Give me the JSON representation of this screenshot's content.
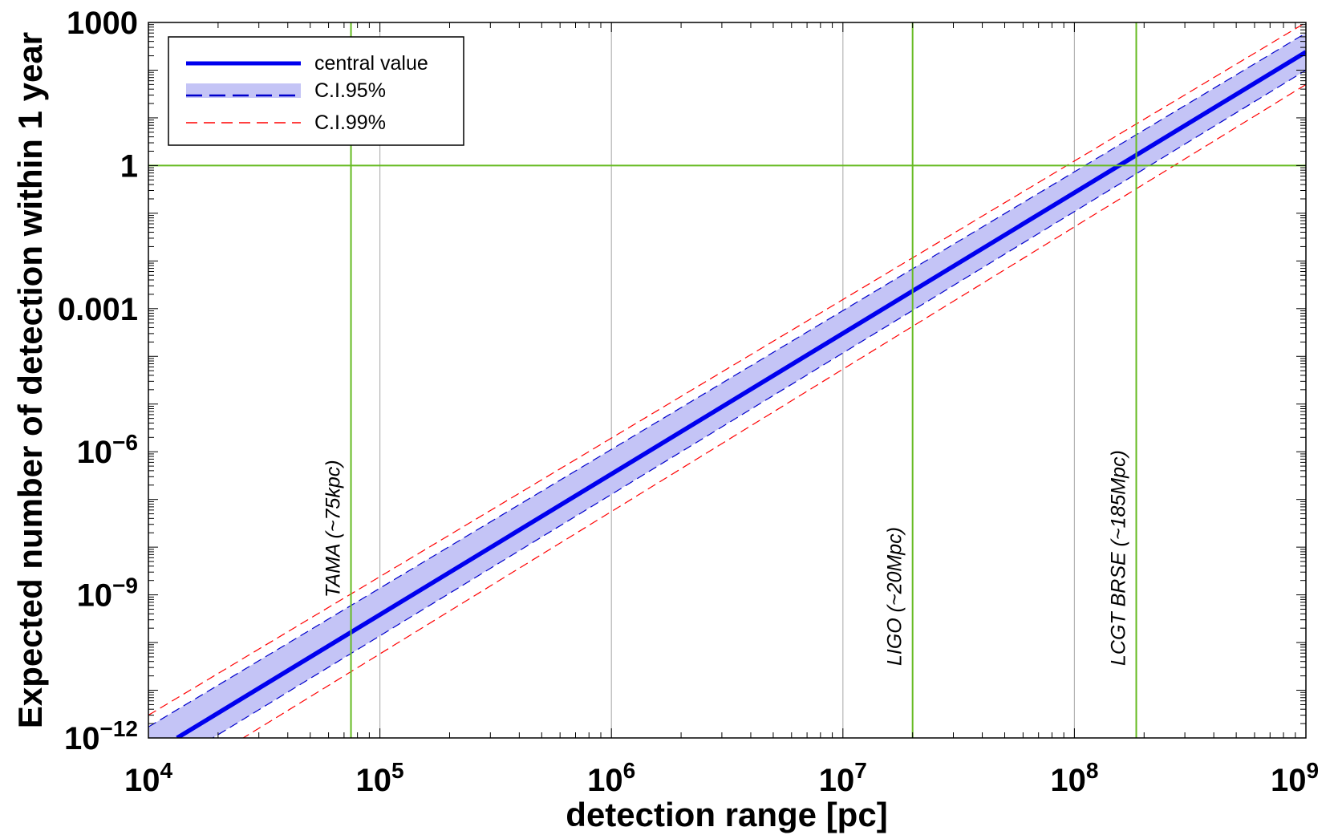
{
  "chart_data": {
    "type": "line",
    "xlabel": "detection range [pc]",
    "ylabel": "Expected number of detection within 1 year",
    "x_scale": "log",
    "y_scale": "log",
    "xlim": [
      10000,
      1000000000
    ],
    "ylim": [
      1e-12,
      1000
    ],
    "grid": "vertical lines at x decades",
    "legend_position": "top-left",
    "x_ticks": [
      {
        "value": 10000,
        "base": "10",
        "exp": "4"
      },
      {
        "value": 100000,
        "base": "10",
        "exp": "5"
      },
      {
        "value": 1000000,
        "base": "10",
        "exp": "6"
      },
      {
        "value": 10000000,
        "base": "10",
        "exp": "7"
      },
      {
        "value": 100000000,
        "base": "10",
        "exp": "8"
      },
      {
        "value": 1000000000,
        "base": "10",
        "exp": "9"
      }
    ],
    "y_ticks": [
      {
        "value": 1e-12,
        "base": "10",
        "exp": "−12"
      },
      {
        "value": 1e-09,
        "base": "10",
        "exp": "−9"
      },
      {
        "value": 1e-06,
        "base": "10",
        "exp": "−6"
      },
      {
        "value": 0.001,
        "label": "0.001"
      },
      {
        "value": 1,
        "label": "1"
      },
      {
        "value": 1000,
        "label": "1000"
      }
    ],
    "series": [
      {
        "name": "central value",
        "style": "solid",
        "color": "#0000ee",
        "x": [
          13300,
          1000000000
        ],
        "y": [
          1e-12,
          240
        ]
      },
      {
        "name": "C.I.95%",
        "style": "band-dashed",
        "color": "#0000cc",
        "fill": "#c4c4f6",
        "x": [
          10000,
          1000000000
        ],
        "lower": [
          1.5e-13,
          100
        ],
        "upper": [
          1.7e-12,
          600
        ]
      },
      {
        "name": "C.I.99%",
        "style": "dashed",
        "color": "#ff0000",
        "x": [
          10000,
          1000000000
        ],
        "lower": [
          6e-14,
          50
        ],
        "upper": [
          3e-12,
          1000
        ]
      }
    ],
    "reference_lines": {
      "horizontal": [
        {
          "y": 1,
          "color": "#66bb22"
        }
      ],
      "vertical": [
        {
          "x": 75000,
          "label": "TAMA (~75kpc)",
          "color": "#66bb22"
        },
        {
          "x": 20000000,
          "label": "LIGO (~20Mpc)",
          "color": "#66bb22"
        },
        {
          "x": 185000000,
          "label": "LCGT BRSE (~185Mpc)",
          "color": "#66bb22"
        }
      ]
    }
  },
  "colors": {
    "central": "#0000ee",
    "band_fill": "#c4c4f6",
    "band_edge": "#0000cc",
    "ci99": "#ff0000",
    "reference": "#66bb22",
    "grid": "#b4b4b4"
  }
}
